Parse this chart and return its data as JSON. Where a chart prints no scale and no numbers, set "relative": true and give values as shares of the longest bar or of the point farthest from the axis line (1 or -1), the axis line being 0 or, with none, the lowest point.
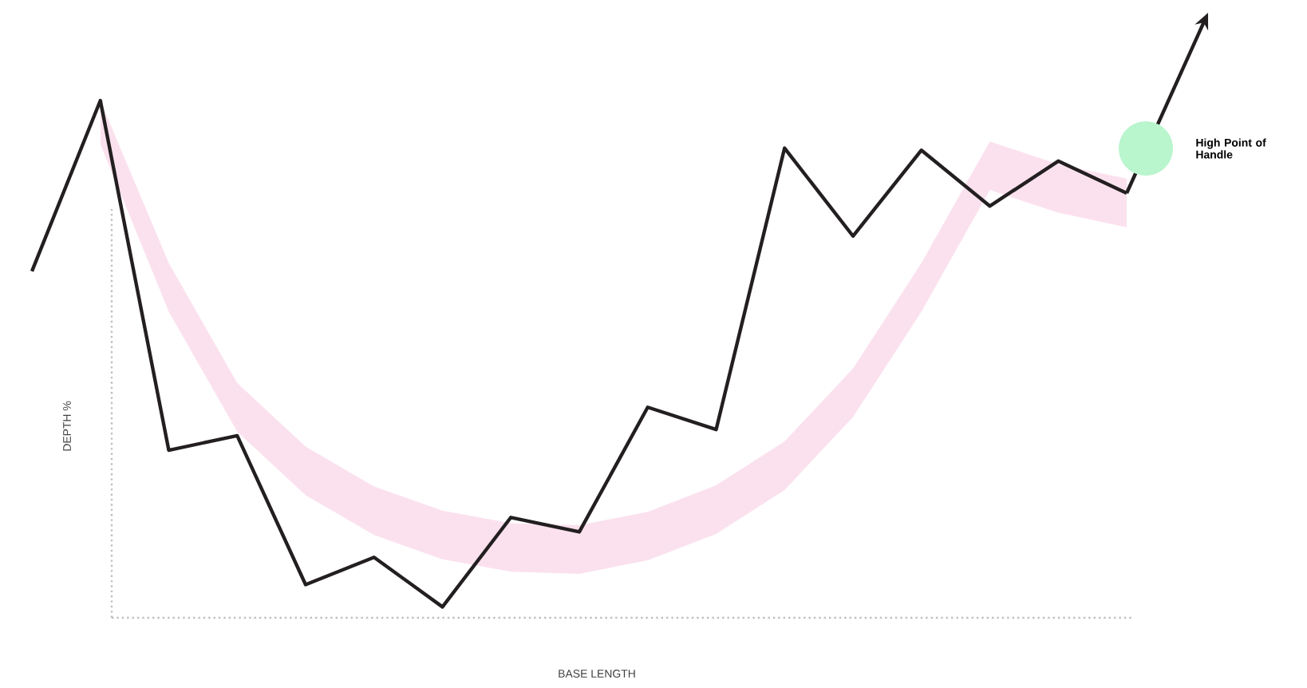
{
  "chart_data": {
    "type": "line",
    "relative": true,
    "xlabel": "BASE LENGTH",
    "ylabel": "DEPTH %",
    "marker": "none",
    "line_style": "solid",
    "categories": [
      null,
      null,
      null,
      null,
      null,
      null,
      null,
      null,
      null,
      null,
      null,
      null,
      null,
      null,
      null,
      null,
      null
    ],
    "series": [
      {
        "color": "#231f20",
        "values": [
          0.67,
          1,
          0.324,
          0.352,
          0.064,
          0.117,
          0.021,
          0.194,
          0.166,
          0.407,
          0.364,
          0.908,
          0.738,
          0.904,
          0.796,
          0.883,
          0.821
        ],
        "lower": [
          null,
          0.916,
          0.592,
          0.36,
          0.237,
          0.16,
          0.113,
          0.089,
          0.085,
          0.111,
          0.162,
          0.247,
          0.388,
          0.592,
          0.827,
          0.783,
          0.755
        ],
        "upper": [
          null,
          1.0,
          0.686,
          0.454,
          0.331,
          0.254,
          0.207,
          0.183,
          0.179,
          0.205,
          0.256,
          0.341,
          0.482,
          0.686,
          0.921,
          0.877,
          0.849
        ]
      }
    ],
    "annotations": [
      "High Point of Handle"
    ]
  }
}
